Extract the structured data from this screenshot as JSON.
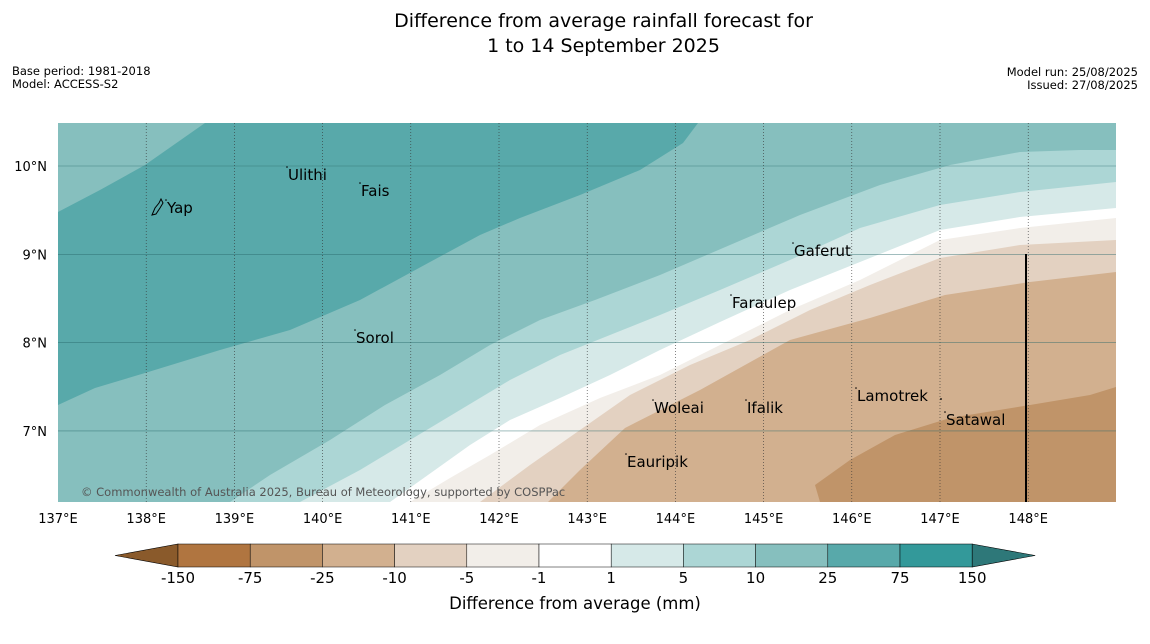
{
  "header": {
    "title_line1": "Difference from average rainfall forecast for",
    "title_line2": "1 to 14 September 2025",
    "base_period": "Base period: 1981-2018",
    "model": "Model: ACCESS-S2",
    "model_run": "Model run: 25/08/2025",
    "issued": "Issued: 27/08/2025"
  },
  "map": {
    "lon_range": [
      137,
      149
    ],
    "lat_range": [
      6.2,
      10.5
    ],
    "lon_ticks": [
      "137°E",
      "138°E",
      "139°E",
      "140°E",
      "141°E",
      "142°E",
      "143°E",
      "144°E",
      "145°E",
      "146°E",
      "147°E",
      "148°E"
    ],
    "lat_ticks": [
      "10°N",
      "9°N",
      "8°N",
      "7°N"
    ],
    "copyright": "© Commonwealth of Australia 2025, Bureau of Meteorology, supported by COSPPac",
    "places": [
      {
        "name": "Yap"
      },
      {
        "name": "Ulithi"
      },
      {
        "name": "Fais"
      },
      {
        "name": "Gaferut"
      },
      {
        "name": "Faraulep"
      },
      {
        "name": "Sorol"
      },
      {
        "name": "Lamotrek"
      },
      {
        "name": "Woleai"
      },
      {
        "name": "Ifalik"
      },
      {
        "name": "Satawal"
      },
      {
        "name": "Eauripik"
      }
    ]
  },
  "colorbar": {
    "title": "Difference from average (mm)",
    "labels": [
      "-150",
      "-75",
      "-25",
      "-10",
      "-5",
      "-1",
      "1",
      "5",
      "10",
      "25",
      "75",
      "150"
    ],
    "colors": [
      "#8a5a2b",
      "#b07540",
      "#c09469",
      "#d2b08f",
      "#e3d1c1",
      "#f2eee9",
      "#ffffff",
      "#d6e9e8",
      "#acd6d5",
      "#86bfbe",
      "#58a9aa",
      "#33999a",
      "#2e7879"
    ]
  }
}
